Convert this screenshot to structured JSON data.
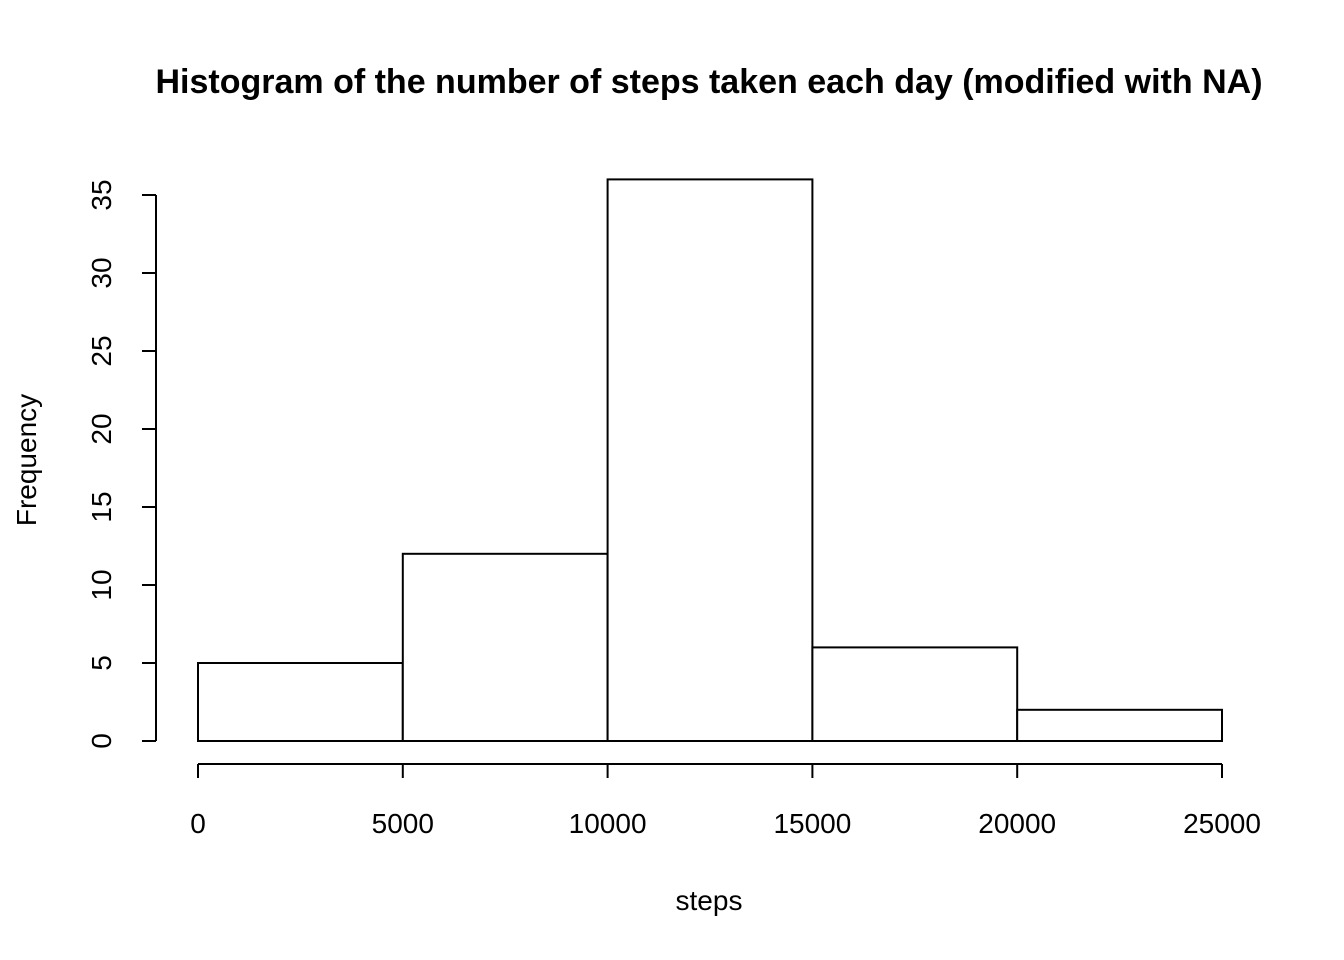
{
  "chart_data": {
    "type": "bar",
    "subtype": "histogram",
    "title": "Histogram of the number of steps taken each day (modified with NA)",
    "xlabel": "steps",
    "ylabel": "Frequency",
    "bins": [
      {
        "start": 0,
        "end": 5000,
        "count": 5
      },
      {
        "start": 5000,
        "end": 10000,
        "count": 12
      },
      {
        "start": 10000,
        "end": 15000,
        "count": 36
      },
      {
        "start": 15000,
        "end": 20000,
        "count": 6
      },
      {
        "start": 20000,
        "end": 25000,
        "count": 2
      }
    ],
    "xlim": [
      0,
      25000
    ],
    "ylim": [
      0,
      35
    ],
    "x_ticks": [
      0,
      5000,
      10000,
      15000,
      20000,
      25000
    ],
    "y_ticks": [
      0,
      5,
      10,
      15,
      20,
      25,
      30,
      35
    ],
    "grid": false,
    "legend": "none",
    "colors": {
      "bar_fill": "#ffffff",
      "bar_stroke": "#000000"
    }
  }
}
